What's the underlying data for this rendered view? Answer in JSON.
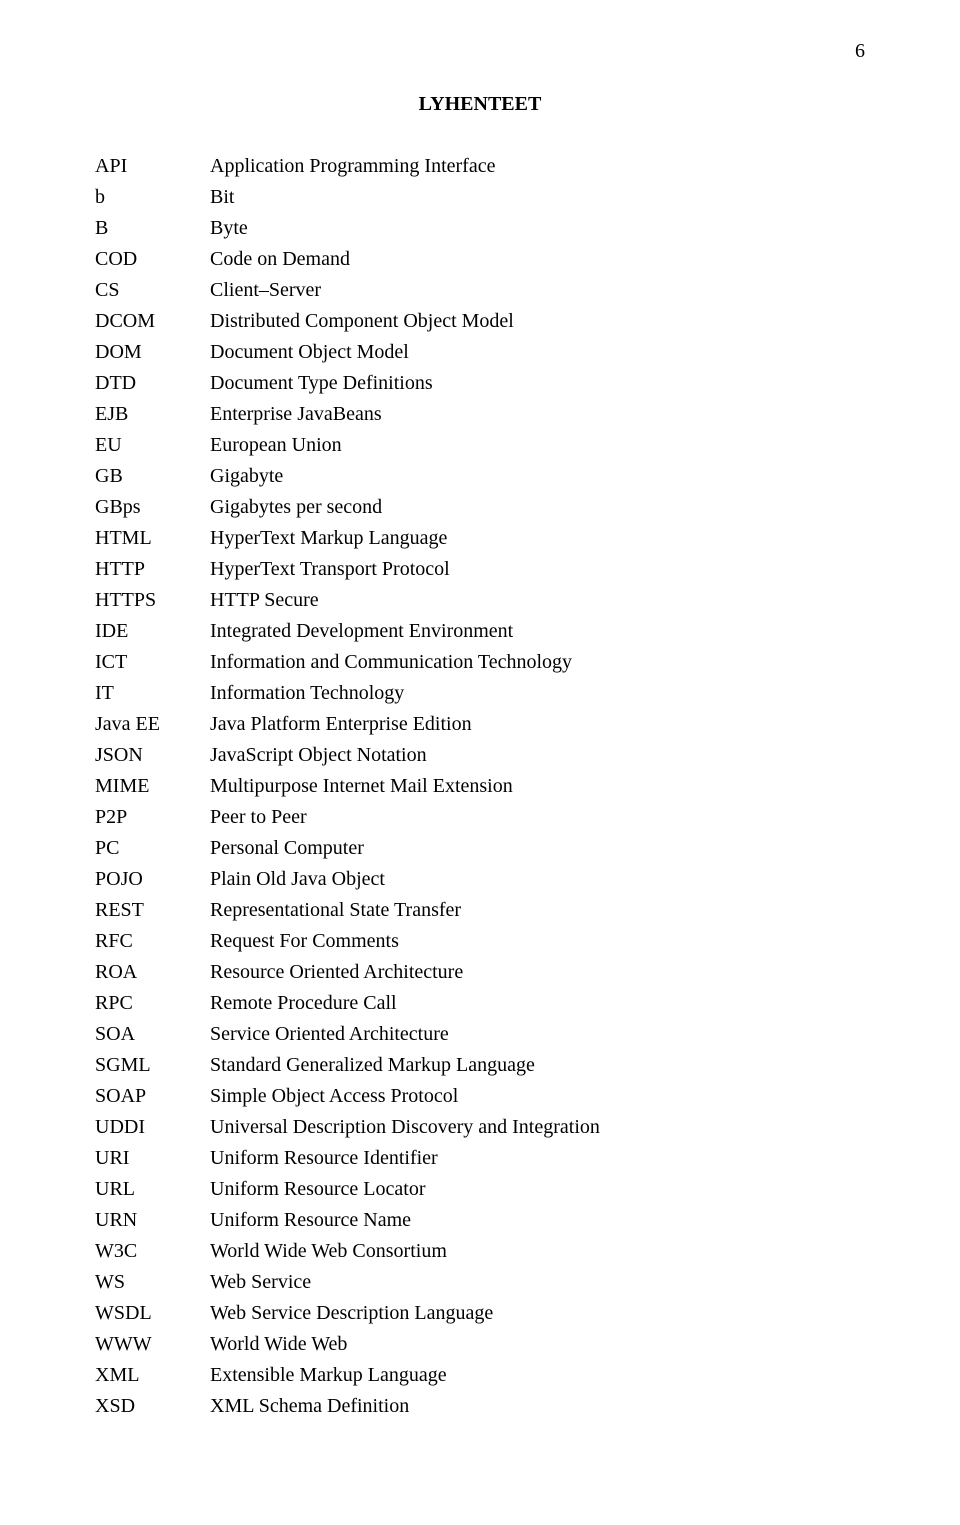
{
  "page_number": "6",
  "title": "LYHENTEET",
  "font_family": "Times New Roman, Times, serif",
  "text_color": "#000000",
  "background_color": "#ffffff",
  "base_fontsize_pt": 15,
  "entries": [
    {
      "abbr": "API",
      "desc": "Application Programming Interface"
    },
    {
      "abbr": "b",
      "desc": "Bit"
    },
    {
      "abbr": "B",
      "desc": "Byte"
    },
    {
      "abbr": "COD",
      "desc": "Code on Demand"
    },
    {
      "abbr": "CS",
      "desc": "Client–Server"
    },
    {
      "abbr": "DCOM",
      "desc": "Distributed Component Object Model"
    },
    {
      "abbr": "DOM",
      "desc": "Document Object Model"
    },
    {
      "abbr": "DTD",
      "desc": "Document Type Definitions"
    },
    {
      "abbr": "EJB",
      "desc": "Enterprise JavaBeans"
    },
    {
      "abbr": "EU",
      "desc": "European Union"
    },
    {
      "abbr": "GB",
      "desc": "Gigabyte"
    },
    {
      "abbr": "GBps",
      "desc": "Gigabytes per second"
    },
    {
      "abbr": "HTML",
      "desc": "HyperText Markup Language"
    },
    {
      "abbr": "HTTP",
      "desc": "HyperText Transport Protocol"
    },
    {
      "abbr": "HTTPS",
      "desc": "HTTP Secure"
    },
    {
      "abbr": "IDE",
      "desc": "Integrated Development Environment"
    },
    {
      "abbr": "ICT",
      "desc": "Information and Communication Technology"
    },
    {
      "abbr": "IT",
      "desc": "Information Technology"
    },
    {
      "abbr": "Java EE",
      "desc": "Java Platform Enterprise Edition"
    },
    {
      "abbr": "JSON",
      "desc": "JavaScript Object Notation"
    },
    {
      "abbr": "MIME",
      "desc": "Multipurpose Internet Mail Extension"
    },
    {
      "abbr": "P2P",
      "desc": "Peer to Peer"
    },
    {
      "abbr": "PC",
      "desc": "Personal Computer"
    },
    {
      "abbr": "POJO",
      "desc": "Plain Old Java Object"
    },
    {
      "abbr": "REST",
      "desc": "Representational State Transfer"
    },
    {
      "abbr": "RFC",
      "desc": "Request For Comments"
    },
    {
      "abbr": "ROA",
      "desc": "Resource Oriented Architecture"
    },
    {
      "abbr": "RPC",
      "desc": "Remote Procedure Call"
    },
    {
      "abbr": "SOA",
      "desc": "Service Oriented Architecture"
    },
    {
      "abbr": "SGML",
      "desc": "Standard Generalized Markup Language"
    },
    {
      "abbr": "SOAP",
      "desc": "Simple Object Access Protocol"
    },
    {
      "abbr": "UDDI",
      "desc": "Universal Description Discovery and Integration"
    },
    {
      "abbr": "URI",
      "desc": "Uniform Resource Identifier"
    },
    {
      "abbr": "URL",
      "desc": "Uniform Resource Locator"
    },
    {
      "abbr": "URN",
      "desc": "Uniform Resource Name"
    },
    {
      "abbr": "W3C",
      "desc": "World Wide Web Consortium"
    },
    {
      "abbr": "WS",
      "desc": "Web Service"
    },
    {
      "abbr": "WSDL",
      "desc": "Web Service Description Language"
    },
    {
      "abbr": "WWW",
      "desc": "World Wide Web"
    },
    {
      "abbr": "XML",
      "desc": "Extensible Markup Language"
    },
    {
      "abbr": "XSD",
      "desc": "XML Schema Definition"
    }
  ]
}
